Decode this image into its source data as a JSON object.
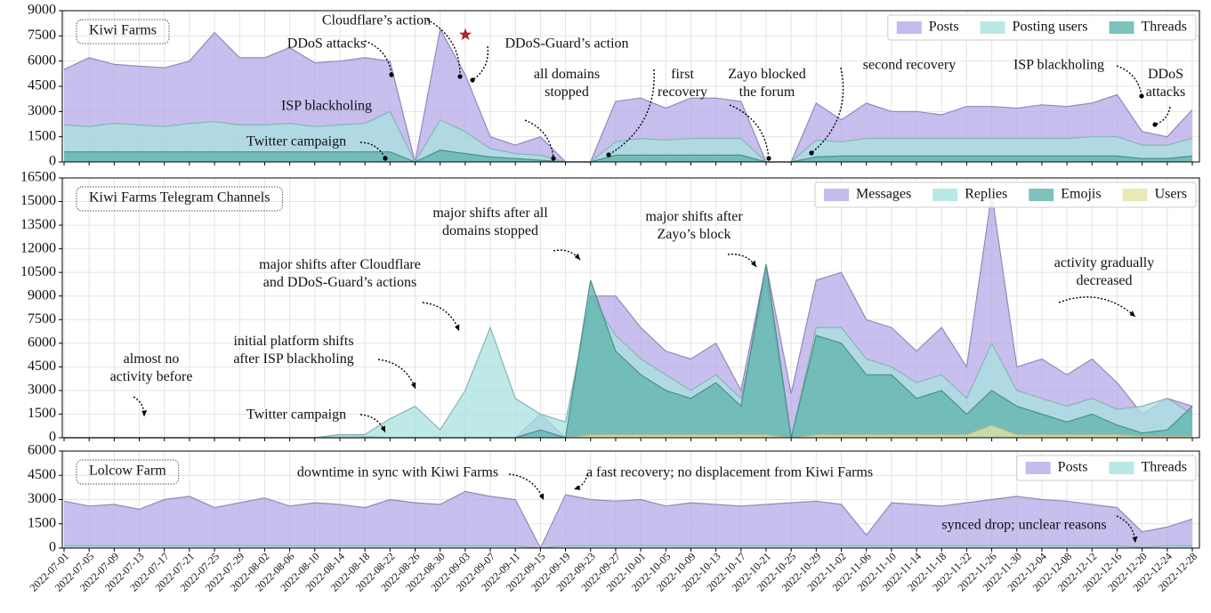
{
  "chart_data": [
    {
      "type": "area",
      "title": "Kiwi Farms",
      "legend": "upper right",
      "grid": true,
      "ylim": [
        0,
        9000
      ],
      "yticks": [
        0,
        1500,
        3000,
        4500,
        6000,
        7500,
        9000
      ],
      "series": [
        {
          "name": "Posts",
          "color": "#b7aae8",
          "values": [
            5500,
            6200,
            5800,
            5700,
            5600,
            6000,
            7700,
            6200,
            6200,
            6800,
            5900,
            6000,
            6200,
            6000,
            0,
            7900,
            5200,
            1500,
            1000,
            1500,
            0,
            0,
            3600,
            3800,
            3200,
            3800,
            3800,
            3600,
            0,
            0,
            3500,
            2500,
            3500,
            3000,
            3000,
            2800,
            3300,
            3300,
            3200,
            3400,
            3300,
            3500,
            4000,
            1800,
            1500,
            3100
          ]
        },
        {
          "name": "Posting users",
          "color": "#a8e2e0",
          "values": [
            2200,
            2100,
            2300,
            2200,
            2100,
            2300,
            2400,
            2200,
            2200,
            2300,
            2100,
            2200,
            2300,
            3000,
            0,
            2500,
            1800,
            800,
            500,
            400,
            0,
            0,
            1200,
            1400,
            1300,
            1400,
            1400,
            1400,
            0,
            0,
            1300,
            1200,
            1400,
            1400,
            1400,
            1400,
            1400,
            1400,
            1400,
            1400,
            1400,
            1500,
            1500,
            1000,
            1000,
            1400
          ]
        },
        {
          "name": "Threads",
          "color": "#5db3ab",
          "values": [
            600,
            600,
            600,
            600,
            600,
            600,
            600,
            600,
            600,
            600,
            600,
            600,
            600,
            600,
            0,
            700,
            500,
            300,
            200,
            100,
            0,
            0,
            400,
            400,
            400,
            400,
            400,
            400,
            0,
            0,
            300,
            350,
            350,
            350,
            350,
            350,
            350,
            350,
            350,
            350,
            350,
            350,
            350,
            200,
            200,
            350
          ]
        }
      ],
      "annotations": [
        "Cloudflare’s action",
        "DDoS attacks",
        "DDoS-Guard’s action",
        "all domains\nstopped",
        "first\nrecovery",
        "Zayo blocked\nthe forum",
        "second recovery",
        "ISP blackholing",
        "DDoS\nattacks",
        "ISP blackholing",
        "Twitter campaign"
      ]
    },
    {
      "type": "area",
      "title": "Kiwi Farms Telegram Channels",
      "legend": "upper right",
      "grid": true,
      "ylim": [
        0,
        16500
      ],
      "yticks": [
        0,
        1500,
        3000,
        4500,
        6000,
        7500,
        9000,
        10500,
        12000,
        13500,
        15000,
        16500
      ],
      "series": [
        {
          "name": "Messages",
          "color": "#b7aae8",
          "values": [
            0,
            0,
            0,
            0,
            0,
            0,
            0,
            0,
            0,
            0,
            0,
            200,
            100,
            0,
            0,
            0,
            0,
            0,
            0,
            1500,
            0,
            9000,
            9000,
            7000,
            5500,
            5000,
            6000,
            3000,
            11000,
            2800,
            10000,
            10500,
            7500,
            7000,
            5500,
            7000,
            4500,
            15500,
            4500,
            5000,
            4000,
            5000,
            3500,
            1500,
            2500,
            2000
          ]
        },
        {
          "name": "Replies",
          "color": "#a8e2e0",
          "values": [
            0,
            0,
            0,
            0,
            0,
            0,
            0,
            0,
            0,
            0,
            0,
            200,
            200,
            1200,
            2000,
            500,
            3000,
            7000,
            2500,
            1500,
            1000,
            9000,
            6500,
            5000,
            4000,
            3000,
            4000,
            2500,
            10000,
            0,
            7000,
            7000,
            5000,
            4500,
            3500,
            4000,
            2500,
            6000,
            3000,
            2500,
            2000,
            2500,
            1800,
            2000,
            2500,
            1500
          ]
        },
        {
          "name": "Emojis",
          "color": "#5db3ab",
          "values": [
            0,
            0,
            0,
            0,
            0,
            0,
            0,
            0,
            0,
            0,
            0,
            0,
            0,
            0,
            0,
            0,
            0,
            0,
            0,
            500,
            0,
            10000,
            5500,
            4000,
            3000,
            2500,
            3500,
            2000,
            11000,
            0,
            6500,
            6000,
            4000,
            4000,
            2500,
            3000,
            1500,
            3000,
            2000,
            1500,
            1000,
            1500,
            800,
            300,
            500,
            2000
          ]
        },
        {
          "name": "Users",
          "color": "#e4e4a6",
          "values": [
            0,
            0,
            0,
            0,
            0,
            0,
            0,
            0,
            0,
            0,
            0,
            0,
            0,
            0,
            0,
            0,
            0,
            0,
            0,
            0,
            0,
            200,
            200,
            200,
            200,
            200,
            200,
            200,
            200,
            0,
            200,
            200,
            200,
            200,
            200,
            200,
            200,
            800,
            200,
            200,
            200,
            200,
            200,
            100,
            100,
            100
          ]
        }
      ],
      "annotations": [
        "major shifts after all\ndomains stopped",
        "major shifts after\nZayo’s block",
        "major shifts after Cloudflare\nand DDoS-Guard’s actions",
        "activity gradually\ndecreased",
        "initial platform shifts\nafter ISP blackholing",
        "almost no\nactivity before",
        "Twitter campaign"
      ]
    },
    {
      "type": "area",
      "title": "Lolcow Farm",
      "legend": "upper right",
      "grid": true,
      "ylim": [
        0,
        6000
      ],
      "yticks": [
        0,
        1500,
        3000,
        4500,
        6000
      ],
      "categories": [
        "2022-07-01",
        "2022-07-05",
        "2022-07-09",
        "2022-07-13",
        "2022-07-17",
        "2022-07-21",
        "2022-07-25",
        "2022-07-29",
        "2022-08-02",
        "2022-08-06",
        "2022-08-10",
        "2022-08-14",
        "2022-08-18",
        "2022-08-22",
        "2022-08-26",
        "2022-08-30",
        "2022-09-03",
        "2022-09-07",
        "2022-09-11",
        "2022-09-15",
        "2022-09-19",
        "2022-09-23",
        "2022-09-27",
        "2022-10-01",
        "2022-10-05",
        "2022-10-09",
        "2022-10-13",
        "2022-10-17",
        "2022-10-21",
        "2022-10-25",
        "2022-10-29",
        "2022-11-02",
        "2022-11-06",
        "2022-11-10",
        "2022-11-14",
        "2022-11-18",
        "2022-11-22",
        "2022-11-26",
        "2022-11-30",
        "2022-12-04",
        "2022-12-08",
        "2022-12-12",
        "2022-12-16",
        "2022-12-20",
        "2022-12-24",
        "2022-12-28"
      ],
      "series": [
        {
          "name": "Posts",
          "color": "#b7aae8",
          "values": [
            2900,
            2600,
            2700,
            2400,
            3000,
            3200,
            2500,
            2800,
            3100,
            2600,
            2800,
            2700,
            2500,
            3000,
            2800,
            2700,
            3500,
            3200,
            3000,
            0,
            3300,
            3000,
            2900,
            3000,
            2600,
            2800,
            2700,
            2600,
            2700,
            2800,
            2900,
            2700,
            800,
            2800,
            2700,
            2600,
            2800,
            3000,
            3200,
            3000,
            2900,
            2700,
            2500,
            1000,
            1300,
            1800
          ]
        },
        {
          "name": "Threads",
          "color": "#a8e2e0",
          "values": [
            150,
            150,
            150,
            150,
            150,
            150,
            150,
            150,
            150,
            150,
            150,
            150,
            150,
            150,
            150,
            150,
            150,
            150,
            150,
            0,
            150,
            150,
            150,
            150,
            150,
            150,
            150,
            150,
            150,
            150,
            150,
            150,
            150,
            150,
            150,
            150,
            150,
            150,
            150,
            150,
            150,
            150,
            150,
            50,
            150,
            150
          ]
        }
      ],
      "annotations": [
        "downtime in sync with Kiwi Farms",
        "a fast recovery; no displacement from Kiwi Farms",
        "synced drop; unclear reasons"
      ]
    }
  ]
}
